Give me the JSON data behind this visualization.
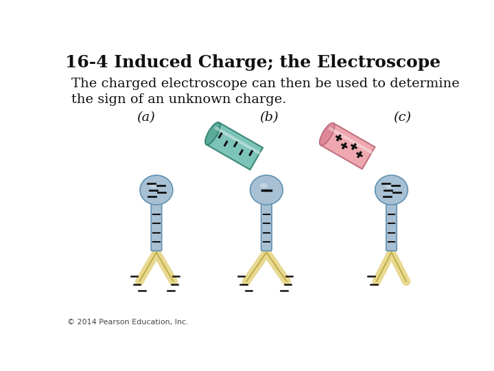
{
  "title": "16-4 Induced Charge; the Electroscope",
  "body_text": "The charged electroscope can then be used to determine\nthe sign of an unknown charge.",
  "copyright": "© 2014 Pearson Education, Inc.",
  "bg_color": "#ffffff",
  "title_fontsize": 18,
  "body_fontsize": 14,
  "copyright_fontsize": 8,
  "label_a": "(a)",
  "label_b": "(b)",
  "label_c": "(c)",
  "elec_fill": "#a8c0d4",
  "elec_edge": "#6090b0",
  "elec_dark": "#7090a8",
  "leaf_fill": "#e8d890",
  "leaf_edge": "#b8a840",
  "rod_neg_fill": "#7dc4b8",
  "rod_neg_edge": "#3a8878",
  "rod_neg_end": "#5aaa98",
  "rod_pos_fill": "#f0a8b0",
  "rod_pos_edge": "#c07080",
  "rod_pos_end": "#e08898",
  "minus_color": "#111111",
  "plus_color": "#111111"
}
